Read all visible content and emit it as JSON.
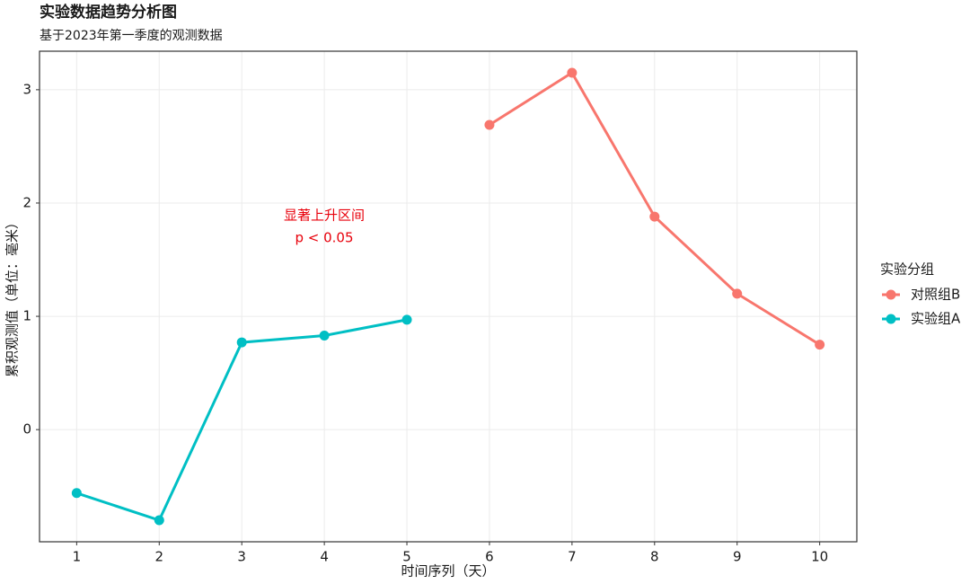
{
  "chart_data": {
    "type": "line",
    "title": "实验数据趋势分析图",
    "subtitle": "基于2023年第一季度的观测数据",
    "x_label": "时间序列（天）",
    "y_label": "累积观测值（单位：毫米）",
    "legend_title": "实验分组",
    "legend_position": "right",
    "x": [
      1,
      2,
      3,
      4,
      5,
      6,
      7,
      8,
      9,
      10
    ],
    "series": [
      {
        "name": "对照组B",
        "color": "#F8766D",
        "values": [
          null,
          null,
          null,
          null,
          null,
          2.69,
          3.15,
          1.88,
          1.2,
          0.75
        ]
      },
      {
        "name": "实验组A",
        "color": "#00BFC4",
        "values": [
          -0.56,
          -0.8,
          0.77,
          0.83,
          0.97,
          null,
          null,
          null,
          null,
          null
        ]
      }
    ],
    "annotation": [
      "显著上升区间",
      "p < 0.05"
    ],
    "annotation_color": "#e8000b",
    "xlim": [
      0.55,
      10.45
    ],
    "xticks": [
      1,
      2,
      3,
      4,
      5,
      6,
      7,
      8,
      9,
      10
    ],
    "ylim": [
      -0.99,
      3.34
    ],
    "yticks": [
      0,
      1,
      2,
      3
    ],
    "grid": true
  }
}
